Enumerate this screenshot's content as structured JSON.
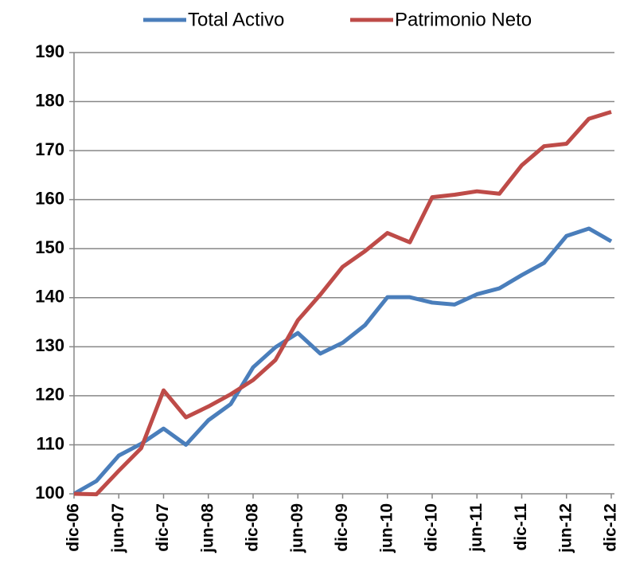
{
  "chart_data": {
    "type": "line",
    "categories": [
      "dic-06",
      null,
      "jun-07",
      null,
      "dic-07",
      null,
      "jun-08",
      null,
      "dic-08",
      null,
      "jun-09",
      null,
      "dic-09",
      null,
      "jun-10",
      null,
      "dic-10",
      null,
      "jun-11",
      null,
      "dic-11",
      null,
      "jun-12",
      null,
      "dic-12"
    ],
    "series": [
      {
        "name": "Total Activo",
        "color": "#4a7ebb",
        "values": [
          100,
          102.6,
          107.8,
          110.2,
          113.3,
          110,
          115,
          118.3,
          125.8,
          129.9,
          132.8,
          128.6,
          130.8,
          134.4,
          140.1,
          140.1,
          139,
          138.6,
          140.7,
          141.9,
          144.6,
          147.1,
          152.6,
          154.1,
          151.5
        ]
      },
      {
        "name": "Patrimonio Neto",
        "color": "#be4b48",
        "values": [
          100,
          99.9,
          104.7,
          109.3,
          121.1,
          115.6,
          117.8,
          120.3,
          123.2,
          127.3,
          135.4,
          140.6,
          146.3,
          149.5,
          153.2,
          151.3,
          160.5,
          161,
          161.7,
          161.2,
          167,
          170.9,
          171.4,
          176.5,
          177.9
        ]
      }
    ],
    "ylim": [
      100,
      190
    ],
    "yticks": [
      100,
      110,
      120,
      130,
      140,
      150,
      160,
      170,
      180,
      190
    ],
    "grid": true,
    "legend": "top"
  }
}
